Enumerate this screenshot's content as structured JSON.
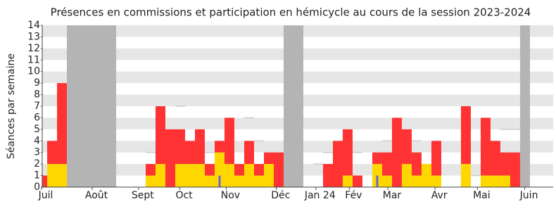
{
  "chart_data": {
    "type": "bar",
    "title": "Présences en commissions et participation en hémicycle au cours de la session 2023-2024",
    "y_label": "Séances par semaine",
    "x": [
      0,
      1,
      2,
      3,
      4,
      5,
      6,
      7,
      8,
      9,
      10,
      11,
      12,
      13,
      14,
      15,
      16,
      17,
      18,
      19,
      20,
      21,
      22,
      23,
      24,
      25,
      26,
      27,
      28,
      29,
      30,
      31,
      32,
      33,
      34,
      35,
      36,
      37,
      38,
      39,
      40,
      41,
      42,
      43,
      44,
      45,
      46,
      47,
      48,
      49,
      50,
      51
    ],
    "series": [
      {
        "color": "#ffd700",
        "values": [
          0,
          2,
          2,
          0,
          0,
          0,
          0,
          0,
          0,
          0,
          0,
          1,
          2,
          0,
          2,
          2,
          2,
          1,
          3,
          2,
          1,
          2,
          1,
          2,
          0,
          0,
          0,
          0,
          0,
          0,
          0,
          1,
          0,
          0,
          2,
          1,
          0,
          2,
          1,
          2,
          1,
          0,
          0,
          2,
          0,
          1,
          1,
          1,
          0,
          0,
          0,
          0
        ]
      },
      {
        "color": "#ff3333",
        "values": [
          1,
          2,
          7,
          0,
          0,
          0,
          0,
          0,
          0,
          0,
          0,
          1,
          5,
          5,
          3,
          2,
          3,
          1,
          1,
          4,
          1,
          2,
          1,
          1,
          3,
          0,
          0,
          0,
          0,
          2,
          4,
          4,
          1,
          0,
          1,
          2,
          6,
          3,
          2,
          0,
          3,
          0,
          0,
          5,
          0,
          5,
          3,
          2,
          3,
          0,
          0,
          0
        ]
      },
      {
        "color": "#6666dd",
        "values": [
          null,
          null,
          null,
          null,
          null,
          null,
          null,
          null,
          null,
          null,
          null,
          null,
          null,
          null,
          null,
          null,
          null,
          null,
          1,
          null,
          null,
          null,
          null,
          null,
          null,
          null,
          null,
          null,
          null,
          null,
          null,
          null,
          null,
          null,
          1,
          null,
          null,
          null,
          null,
          null,
          null,
          null,
          null,
          null,
          null,
          null,
          null,
          null,
          null,
          null,
          null,
          null
        ]
      },
      {
        "color": "#cccccc",
        "values": [
          null,
          null,
          null,
          null,
          null,
          null,
          null,
          null,
          null,
          null,
          null,
          3,
          null,
          null,
          7,
          null,
          null,
          3,
          null,
          null,
          null,
          6,
          4,
          null,
          null,
          null,
          null,
          null,
          2,
          3,
          null,
          null,
          3,
          null,
          null,
          4,
          null,
          null,
          4,
          null,
          null,
          null,
          null,
          null,
          1,
          null,
          null,
          5,
          5,
          null,
          null,
          null
        ]
      }
    ],
    "shaded_weeks": [
      3,
      4,
      5,
      6,
      7,
      25,
      26,
      49
    ],
    "shade_color": "#b4b4b4",
    "xlim": [
      0.5,
      52.36
    ],
    "xticks": [
      {
        "value": 0.86,
        "label": "Juil"
      },
      {
        "value": 6.0,
        "label": "Août"
      },
      {
        "value": 10.7,
        "label": "Sept"
      },
      {
        "value": 14.9,
        "label": "Oct"
      },
      {
        "value": 19.6,
        "label": "Nov"
      },
      {
        "value": 24.7,
        "label": "Déc"
      },
      {
        "value": 28.7,
        "label": "Jan 24"
      },
      {
        "value": 32.1,
        "label": "Fév"
      },
      {
        "value": 36.0,
        "label": "Mar"
      },
      {
        "value": 40.8,
        "label": "Avr"
      },
      {
        "value": 45.1,
        "label": "Mai"
      },
      {
        "value": 49.9,
        "label": "Juin"
      }
    ],
    "ylim": [
      0,
      14
    ],
    "yticks": [
      0,
      1,
      2,
      3,
      4,
      5,
      6,
      7,
      8,
      9,
      10,
      11,
      12,
      13,
      14
    ],
    "grid": true
  }
}
